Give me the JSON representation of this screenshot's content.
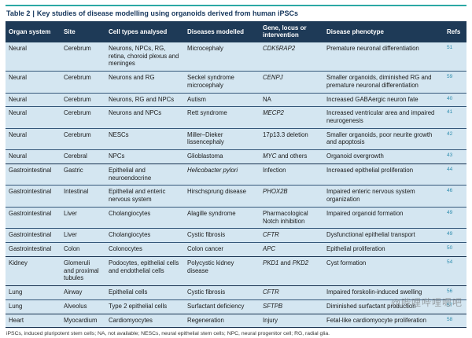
{
  "colors": {
    "accent": "#2ca8a4",
    "header_bg": "#1e3a57",
    "header_text": "#ffffff",
    "row_bg": "#d4e6f1",
    "row_line": "#35587a",
    "group_line": "#16304f",
    "title_text": "#15365c",
    "refs_text": "#2e8dae",
    "footnote_text": "#333333",
    "watermark_text": "#777777"
  },
  "table": {
    "title": {
      "label": "Table 2",
      "divider": "|",
      "text": "Key studies of disease modelling using organoids derived from human iPSCs"
    },
    "columns": [
      "Organ system",
      "Site",
      "Cell types analysed",
      "Diseases modelled",
      "Gene, locus or intervention",
      "Disease phenotype",
      "Refs"
    ],
    "rows": [
      {
        "organ": "Neural",
        "site": "Cerebrum",
        "cells": "Neurons, NPCs, RG, retina, choroid plexus and meninges",
        "disease": "Microcephaly",
        "gene": "*CDK5RAP2*",
        "phenotype": "Premature neuronal differentiation",
        "refs": "51",
        "group_start": true
      },
      {
        "organ": "Neural",
        "site": "Cerebrum",
        "cells": "Neurons and RG",
        "disease": "Seckel syndrome microcephaly",
        "gene": "*CENPJ*",
        "phenotype": "Smaller organoids, diminished RG and premature neuronal differentiation",
        "refs": "59",
        "group_start": false
      },
      {
        "organ": "Neural",
        "site": "Cerebrum",
        "cells": "Neurons, RG and NPCs",
        "disease": "Autism",
        "gene": "NA",
        "phenotype": "Increased GABAergic neuron fate",
        "refs": "40",
        "group_start": false
      },
      {
        "organ": "Neural",
        "site": "Cerebrum",
        "cells": "Neurons and NPCs",
        "disease": "Rett syndrome",
        "gene": "*MECP2*",
        "phenotype": "Increased ventricular area and impaired neurogenesis",
        "refs": "41",
        "group_start": false
      },
      {
        "organ": "Neural",
        "site": "Cerebrum",
        "cells": "NESCs",
        "disease": "Miller–Dieker lissencephaly",
        "gene": "17p13.3 deletion",
        "phenotype": "Smaller organoids, poor neurite growth and apoptosis",
        "refs": "42",
        "group_start": false
      },
      {
        "organ": "Neural",
        "site": "Cerebral",
        "cells": "NPCs",
        "disease": "Glioblastoma",
        "gene": "*MYC* and others",
        "phenotype": "Organoid overgrowth",
        "refs": "43",
        "group_start": false
      },
      {
        "organ": "Gastrointestinal",
        "site": "Gastric",
        "cells": "Epithelial and neuroendocrine",
        "disease": "*Helicobacter pylori*",
        "gene": "Infection",
        "phenotype": "Increased epithelial proliferation",
        "refs": "44",
        "group_start": true
      },
      {
        "organ": "Gastrointestinal",
        "site": "Intestinal",
        "cells": "Epithelial and enteric nervous system",
        "disease": "Hirschsprung disease",
        "gene": "*PHOX2B*",
        "phenotype": "Impaired enteric nervous system organization",
        "refs": "46",
        "group_start": false
      },
      {
        "organ": "Gastrointestinal",
        "site": "Liver",
        "cells": "Cholangiocytes",
        "disease": "Alagille syndrome",
        "gene": "Pharmacological Notch inhibition",
        "phenotype": "Impaired organoid formation",
        "refs": "49",
        "group_start": false
      },
      {
        "organ": "Gastrointestinal",
        "site": "Liver",
        "cells": "Cholangiocytes",
        "disease": "Cystic fibrosis",
        "gene": "*CFTR*",
        "phenotype": "Dysfunctional epithelial transport",
        "refs": "49",
        "group_start": false
      },
      {
        "organ": "Gastrointestinal",
        "site": "Colon",
        "cells": "Colonocytes",
        "disease": "Colon cancer",
        "gene": "*APC*",
        "phenotype": "Epithelial proliferation",
        "refs": "50",
        "group_start": false
      },
      {
        "organ": "Kidney",
        "site": "Glomeruli and proximal tubules",
        "cells": "Podocytes, epithelial cells and endothelial cells",
        "disease": "Polycystic kidney disease",
        "gene": "*PKD1* and *PKD2*",
        "phenotype": "Cyst formation",
        "refs": "54",
        "group_start": true
      },
      {
        "organ": "Lung",
        "site": "Airway",
        "cells": "Epithelial cells",
        "disease": "Cystic fibrosis",
        "gene": "*CFTR*",
        "phenotype": "Impaired forskolin-induced swelling",
        "refs": "56",
        "group_start": true
      },
      {
        "organ": "Lung",
        "site": "Alveolus",
        "cells": "Type 2 epithelial cells",
        "disease": "Surfactant deficiency",
        "gene": "*SFTPB*",
        "phenotype": "Diminished surfactant production",
        "refs": "57",
        "group_start": false
      },
      {
        "organ": "Heart",
        "site": "Myocardium",
        "cells": "Cardiomyocytes",
        "disease": "Regeneration",
        "gene": "Injury",
        "phenotype": "Fetal-like cardiomyocyte proliferation",
        "refs": "58",
        "group_start": true
      }
    ],
    "footnote": "iPSCs, induced pluripotent stem cells; NA, not available; NESCs, neural epithelial stem cells; NPC, neural progenitor cell; RG, radial glia."
  },
  "watermark": "@哔哩哔哩嗯吧"
}
